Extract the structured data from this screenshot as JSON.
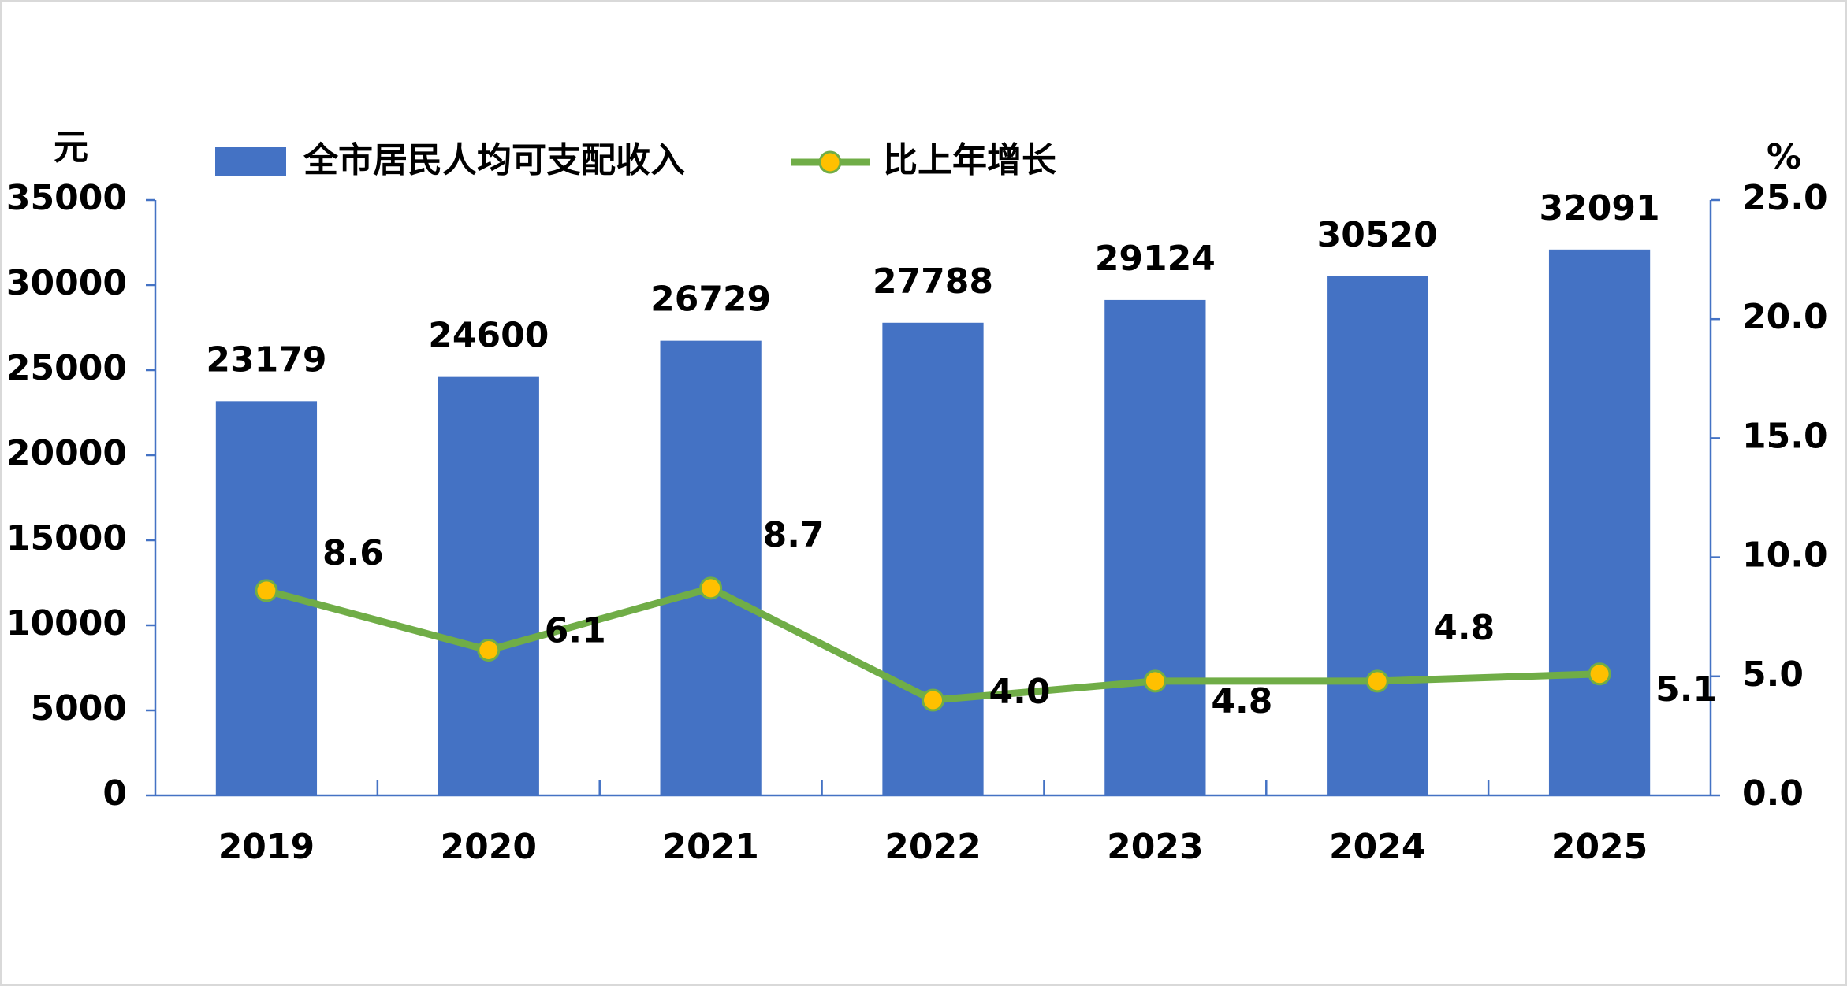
{
  "chart_data": {
    "type": "bar",
    "categories": [
      "2019",
      "2020",
      "2021",
      "2022",
      "2023",
      "2024",
      "2025"
    ],
    "y_label": "元",
    "y2_label": "%",
    "ylim": [
      0,
      35000
    ],
    "yticks": [
      0,
      5000,
      10000,
      15000,
      20000,
      25000,
      30000,
      35000
    ],
    "y2lim": [
      0,
      25
    ],
    "y2ticks": [
      {
        "value": 0,
        "label": "0.0"
      },
      {
        "value": 5,
        "label": "5.0"
      },
      {
        "value": 10,
        "label": "10.0"
      },
      {
        "value": 15,
        "label": "15.0"
      },
      {
        "value": 20,
        "label": "20.0"
      },
      {
        "value": 25,
        "label": "25.0"
      }
    ],
    "series": [
      {
        "name": "全市居民人均可支配收入",
        "type": "bar",
        "color": "#4472c4",
        "values": [
          23179,
          24600,
          26729,
          27788,
          29124,
          30520,
          32091
        ]
      },
      {
        "name": "比上年增长",
        "type": "line",
        "axis": "y2",
        "color": "#70ad47",
        "marker_color": "#ffc000",
        "values": [
          8.6,
          6.1,
          8.7,
          4.0,
          4.8,
          4.8,
          5.1
        ],
        "value_labels": [
          "8.6",
          "6.1",
          "8.7",
          "4.0",
          "4.8",
          "4.8",
          "5.1"
        ]
      }
    ]
  }
}
